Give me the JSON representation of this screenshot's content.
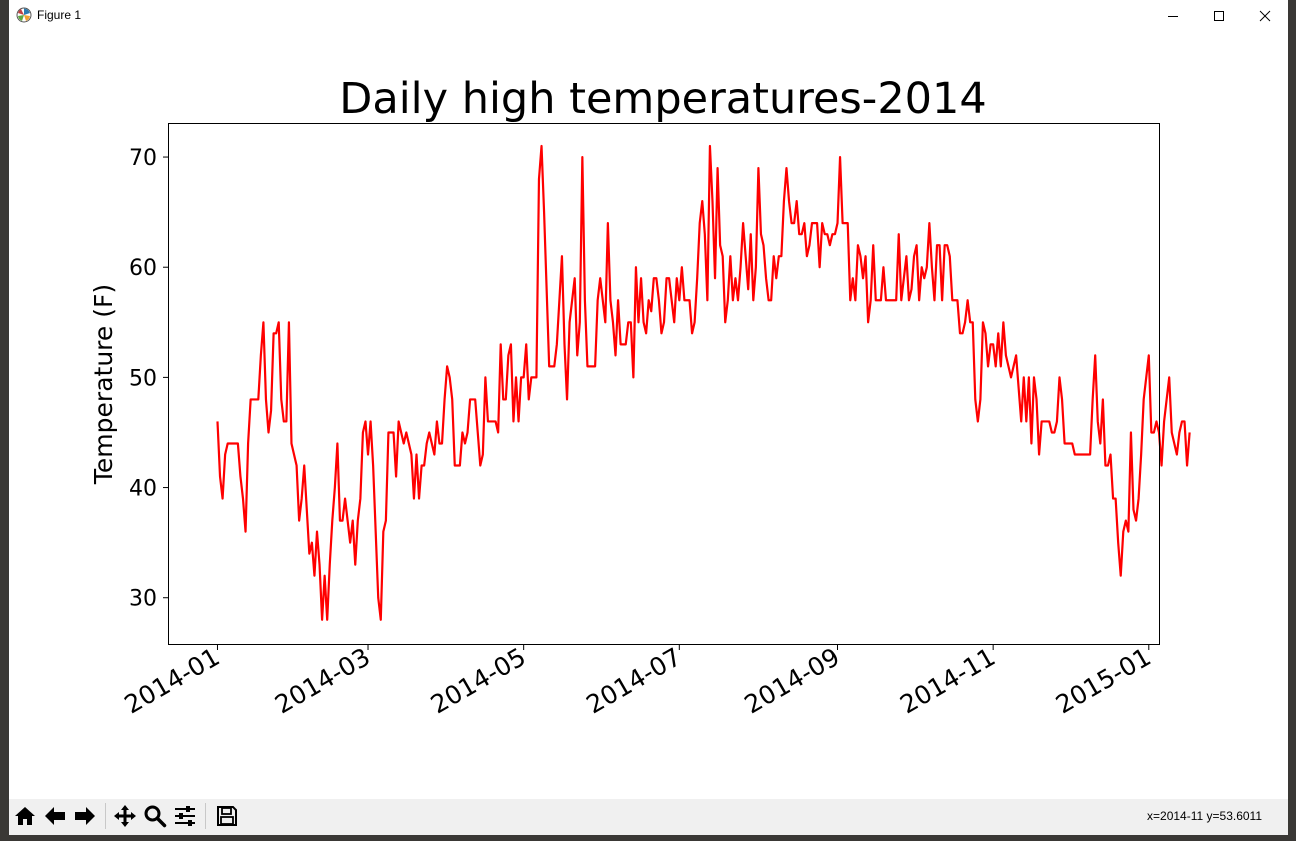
{
  "window": {
    "title": "Figure 1"
  },
  "toolbar": {
    "buttons": [
      "home",
      "back",
      "forward",
      "pan",
      "zoom",
      "configure-subplots",
      "save"
    ],
    "coords_text": "x=2014-11 y=53.6011"
  },
  "colors": {
    "line": "#ff0000"
  },
  "chart_data": {
    "type": "line",
    "title": "Daily high temperatures-2014",
    "xlabel": "",
    "ylabel": "Temperature (F)",
    "x_start": "2014-01-01",
    "xlim": [
      "2013-12-13",
      "2015-01-05"
    ],
    "ylim": [
      25.8,
      73.0
    ],
    "xticks": [
      {
        "date": "2014-01-01",
        "label": "2014-01"
      },
      {
        "date": "2014-03-01",
        "label": "2014-03"
      },
      {
        "date": "2014-05-01",
        "label": "2014-05"
      },
      {
        "date": "2014-07-01",
        "label": "2014-07"
      },
      {
        "date": "2014-09-01",
        "label": "2014-09"
      },
      {
        "date": "2014-11-01",
        "label": "2014-11"
      },
      {
        "date": "2015-01-01",
        "label": "2015-01"
      }
    ],
    "yticks": [
      30,
      40,
      50,
      60,
      70
    ],
    "grid": false,
    "series": [
      {
        "color": "#ff0000",
        "values": [
          46,
          41,
          39,
          43,
          44,
          44,
          44,
          44,
          44,
          41,
          39,
          36,
          44,
          48,
          48,
          48,
          48,
          52,
          55,
          48,
          45,
          47,
          54,
          54,
          55,
          48,
          46,
          46,
          55,
          44,
          43,
          42,
          37,
          39,
          42,
          38,
          34,
          35,
          32,
          36,
          33,
          28,
          32,
          28,
          33,
          37,
          40,
          44,
          37,
          37,
          39,
          37,
          35,
          37,
          33,
          37,
          39,
          45,
          46,
          43,
          46,
          42,
          36,
          30,
          28,
          36,
          37,
          45,
          45,
          45,
          41,
          46,
          45,
          44,
          45,
          44,
          43,
          39,
          43,
          39,
          42,
          42,
          44,
          45,
          44,
          43,
          46,
          44,
          44,
          48,
          51,
          50,
          48,
          42,
          42,
          42,
          45,
          44,
          45,
          48,
          48,
          48,
          45,
          42,
          43,
          50,
          46,
          46,
          46,
          46,
          45,
          53,
          48,
          48,
          52,
          53,
          46,
          50,
          46,
          50,
          50,
          53,
          48,
          50,
          50,
          50,
          68,
          71,
          65,
          58,
          51,
          51,
          51,
          53,
          57,
          61,
          53,
          48,
          55,
          57,
          59,
          52,
          55,
          70,
          57,
          51,
          51,
          51,
          51,
          57,
          59,
          57,
          55,
          64,
          57,
          55,
          52,
          57,
          53,
          53,
          53,
          55,
          55,
          50,
          60,
          55,
          59,
          55,
          54,
          57,
          56,
          59,
          59,
          57,
          54,
          55,
          59,
          59,
          57,
          55,
          59,
          57,
          60,
          57,
          57,
          57,
          54,
          55,
          59,
          64,
          66,
          63,
          57,
          71,
          66,
          59,
          69,
          62,
          61,
          55,
          57,
          61,
          57,
          59,
          57,
          60,
          64,
          61,
          58,
          63,
          57,
          60,
          69,
          63,
          62,
          59,
          57,
          57,
          61,
          59,
          61,
          61,
          66,
          69,
          66,
          64,
          64,
          66,
          63,
          63,
          64,
          61,
          62,
          64,
          64,
          64,
          60,
          64,
          63,
          63,
          62,
          63,
          63,
          64,
          70,
          64,
          64,
          64,
          57,
          59,
          57,
          62,
          61,
          59,
          61,
          55,
          57,
          62,
          57,
          57,
          57,
          60,
          57,
          57,
          57,
          57,
          57,
          63,
          57,
          59,
          61,
          57,
          58,
          61,
          62,
          57,
          60,
          59,
          60,
          64,
          60,
          57,
          62,
          62,
          57,
          62,
          62,
          61,
          57,
          57,
          57,
          54,
          54,
          55,
          57,
          55,
          55,
          48,
          46,
          48,
          55,
          54,
          51,
          53,
          53,
          51,
          54,
          51,
          55,
          52,
          51,
          50,
          51,
          52,
          49,
          46,
          50,
          46,
          50,
          44,
          50,
          48,
          43,
          46,
          46,
          46,
          46,
          45,
          45,
          46,
          50,
          48,
          44,
          44,
          44,
          44,
          43,
          43,
          43,
          43,
          43,
          43,
          43,
          48,
          52,
          46,
          44,
          48,
          42,
          42,
          43,
          39,
          39,
          35,
          32,
          36,
          37,
          36,
          45,
          38,
          37,
          39,
          43,
          48,
          50,
          52,
          45,
          45,
          46,
          45,
          42,
          46,
          48,
          50,
          45,
          44,
          43,
          45,
          46,
          46,
          42,
          45
        ]
      }
    ]
  }
}
